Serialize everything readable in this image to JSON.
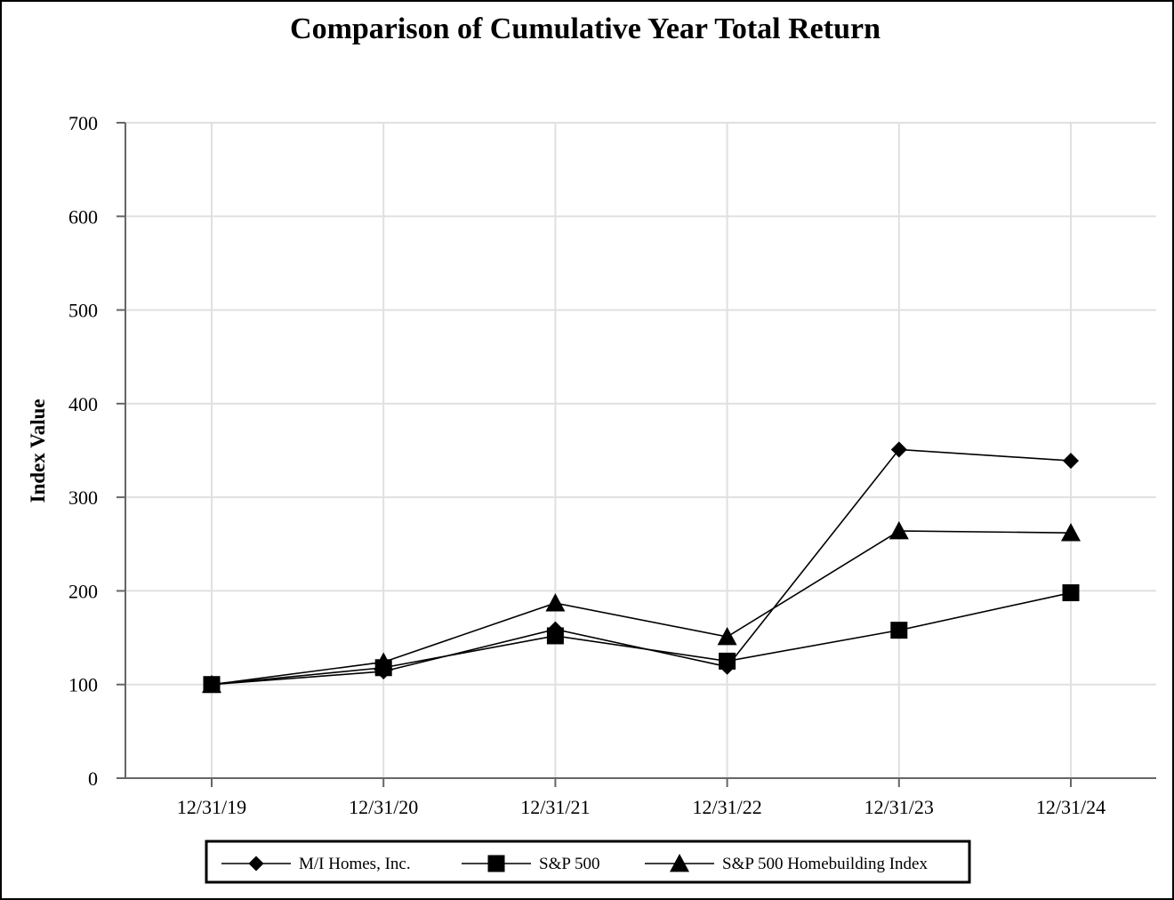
{
  "chart_data": {
    "type": "line",
    "title": "Comparison of Cumulative Year Total Return",
    "xlabel": "",
    "ylabel": "Index Value",
    "categories": [
      "12/31/19",
      "12/31/20",
      "12/31/21",
      "12/31/22",
      "12/31/23",
      "12/31/24"
    ],
    "ylim": [
      0,
      700
    ],
    "yticks": [
      0,
      100,
      200,
      300,
      400,
      500,
      600,
      700
    ],
    "grid": true,
    "legend_position": "bottom",
    "series": [
      {
        "name": "M/I Homes, Inc.",
        "marker": "diamond",
        "values": [
          100,
          114,
          159,
          119,
          351,
          339
        ]
      },
      {
        "name": "S&P 500",
        "marker": "square",
        "values": [
          100,
          118,
          152,
          125,
          158,
          198
        ]
      },
      {
        "name": "S&P 500 Homebuilding Index",
        "marker": "triangle",
        "values": [
          100,
          124,
          187,
          151,
          264,
          262
        ]
      }
    ],
    "colors": {
      "line": "#000000",
      "grid": "#e0e0e0",
      "axis": "#666666"
    }
  }
}
